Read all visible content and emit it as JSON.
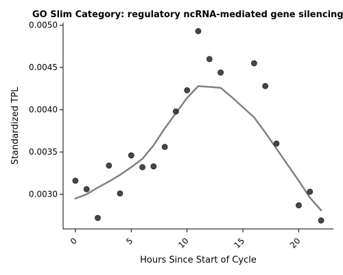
{
  "chart_data": {
    "type": "scatter",
    "title": "GO Slim Category: regulatory ncRNA-mediated gene silencing",
    "xlabel": "Hours Since Start of Cycle",
    "ylabel": "Standardized TPL",
    "xlim": [
      -1.1,
      23.1
    ],
    "ylim": [
      0.00259,
      0.00503
    ],
    "xticks": [
      0,
      5,
      10,
      15,
      20
    ],
    "xtick_labels": [
      "0",
      "5",
      "10",
      "15",
      "20"
    ],
    "yticks": [
      0.003,
      0.0035,
      0.004,
      0.0045,
      0.005
    ],
    "ytick_labels": [
      "0.0030",
      "0.0035",
      "0.0040",
      "0.0045",
      "0.0050"
    ],
    "grid": false,
    "series": [
      {
        "kind": "points",
        "color": "#333333",
        "x": [
          0,
          1,
          2,
          3,
          4,
          5,
          6,
          7,
          8,
          9,
          10,
          11,
          12,
          13,
          16,
          17,
          18,
          20,
          21,
          22
        ],
        "y": [
          0.00316,
          0.00306,
          0.00272,
          0.00334,
          0.00301,
          0.00346,
          0.00332,
          0.00333,
          0.00356,
          0.00398,
          0.00423,
          0.00493,
          0.0046,
          0.00444,
          0.00455,
          0.00428,
          0.0036,
          0.00287,
          0.00303,
          0.00269
        ]
      },
      {
        "kind": "smooth-line",
        "color": "#808080",
        "x": [
          0,
          1,
          2,
          3,
          4,
          5,
          6,
          7,
          8,
          9,
          10,
          11,
          12,
          13,
          14,
          15,
          16,
          17,
          18,
          19,
          20,
          21,
          22
        ],
        "y": [
          0.00295,
          0.003,
          0.00308,
          0.00315,
          0.00323,
          0.00332,
          0.00342,
          0.00358,
          0.00378,
          0.00396,
          0.00414,
          0.00428,
          0.00427,
          0.00426,
          0.00415,
          0.00403,
          0.00391,
          0.00373,
          0.00354,
          0.00335,
          0.00316,
          0.00296,
          0.00281
        ]
      }
    ]
  }
}
